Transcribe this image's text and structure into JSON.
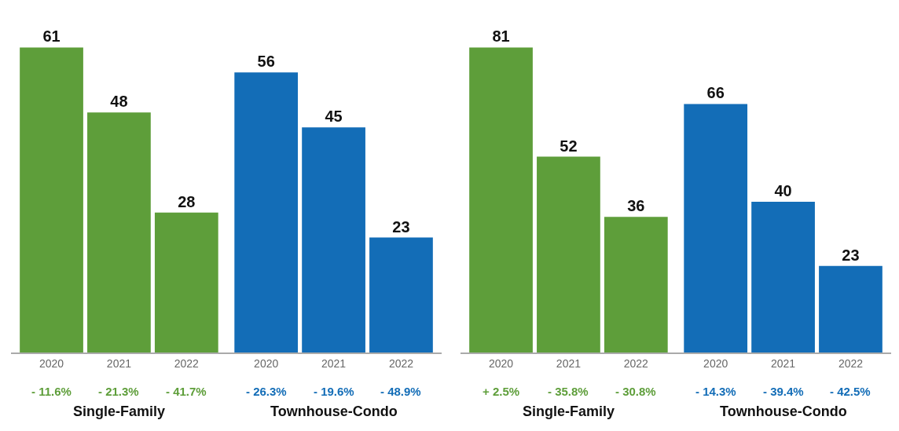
{
  "chart_data": [
    {
      "type": "bar",
      "categories": [
        "2020",
        "2021",
        "2022",
        "2020",
        "2021",
        "2022"
      ],
      "values": [
        61,
        48,
        28,
        56,
        45,
        23
      ],
      "colors": [
        "#5e9e3a",
        "#5e9e3a",
        "#5e9e3a",
        "#136db7",
        "#136db7",
        "#136db7"
      ],
      "data_labels": true,
      "annotations": [
        "- 11.6%",
        "- 21.3%",
        "- 41.7%",
        "- 26.3%",
        "- 19.6%",
        "- 48.9%",
        "Single-Family",
        "Townhouse-Condo"
      ]
    },
    {
      "type": "bar",
      "categories": [
        "2020",
        "2021",
        "2022",
        "2020",
        "2021",
        "2022"
      ],
      "values": [
        81,
        52,
        36,
        66,
        40,
        23
      ],
      "colors": [
        "#5e9e3a",
        "#5e9e3a",
        "#5e9e3a",
        "#136db7",
        "#136db7",
        "#136db7"
      ],
      "data_labels": true,
      "annotations": [
        "+ 2.5%",
        "- 35.8%",
        "- 30.8%",
        "- 14.3%",
        "- 39.4%",
        "- 42.5%",
        "Single-Family",
        "Townhouse-Condo"
      ]
    }
  ]
}
